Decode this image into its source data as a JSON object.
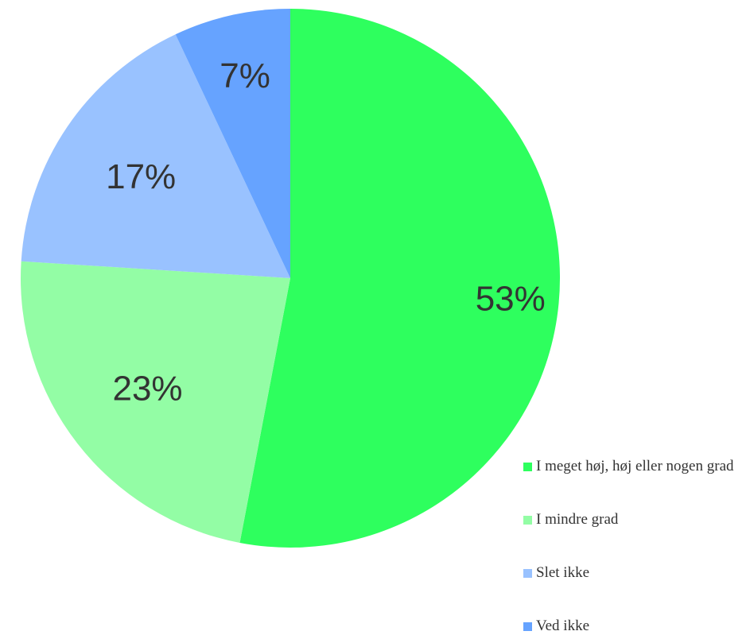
{
  "chart_data": {
    "type": "pie",
    "title": "",
    "categories": [
      "I meget høj, høj eller nogen grad",
      "I mindre grad",
      "Slet ikke",
      "Ved ikke"
    ],
    "values": [
      53,
      23,
      17,
      7
    ],
    "labels": [
      "53%",
      "23%",
      "17%",
      "7%"
    ],
    "colors": [
      "#2eff5e",
      "#93fda5",
      "#99c2ff",
      "#66a3ff"
    ],
    "start_angle": "12 o'clock, clockwise",
    "legend": "bottom-right"
  }
}
